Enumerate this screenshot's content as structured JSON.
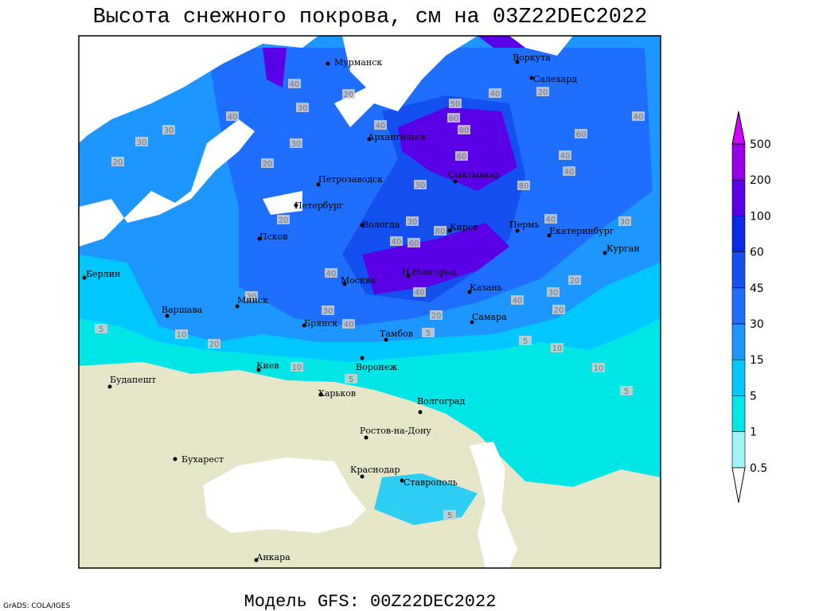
{
  "title": "Высота снежного покрова, см на 03Z22DEC2022",
  "footer": "Модель GFS: 00Z22DEC2022",
  "credit": "GrADS: COLA/IGES",
  "cities": [
    "Мурманск",
    "Воркута",
    "Салехард",
    "Архангельск",
    "Сыктывкар",
    "Петрозаводск",
    "Петербург",
    "Вологда",
    "Киров",
    "Пермь",
    "Екатеринбург",
    "Курган",
    "Псков",
    "Москва",
    "Н.Новгород",
    "Казань",
    "Берлин",
    "Варшава",
    "Минск",
    "Брянск",
    "Тамбов",
    "Самара",
    "Киев",
    "Воронеж",
    "Будапешт",
    "Харьков",
    "Волгоград",
    "Ростов-на-Дону",
    "Бухарест",
    "Краснодар",
    "Ставрополь",
    "Анкара"
  ],
  "contour_labels": [
    30,
    30,
    20,
    40,
    20,
    30,
    40,
    30,
    20,
    40,
    50,
    60,
    60,
    80,
    40,
    40,
    60,
    40,
    40,
    20,
    30,
    80,
    20,
    40,
    30,
    60,
    80,
    40,
    30,
    40,
    30,
    40,
    40,
    30,
    20,
    20,
    30,
    5,
    10,
    20,
    40,
    5,
    20,
    5,
    10,
    10,
    10,
    5,
    5,
    5
  ],
  "colorbar": {
    "levels": [
      0.5,
      1,
      5,
      15,
      30,
      45,
      60,
      100,
      200,
      500
    ],
    "colors": [
      "#ffffff",
      "#a0f5f5",
      "#00e6e6",
      "#00c8ff",
      "#1e96ff",
      "#1e6eff",
      "#1450f0",
      "#0a28e6",
      "#5a00e6",
      "#9600e6",
      "#d200ff"
    ]
  }
}
